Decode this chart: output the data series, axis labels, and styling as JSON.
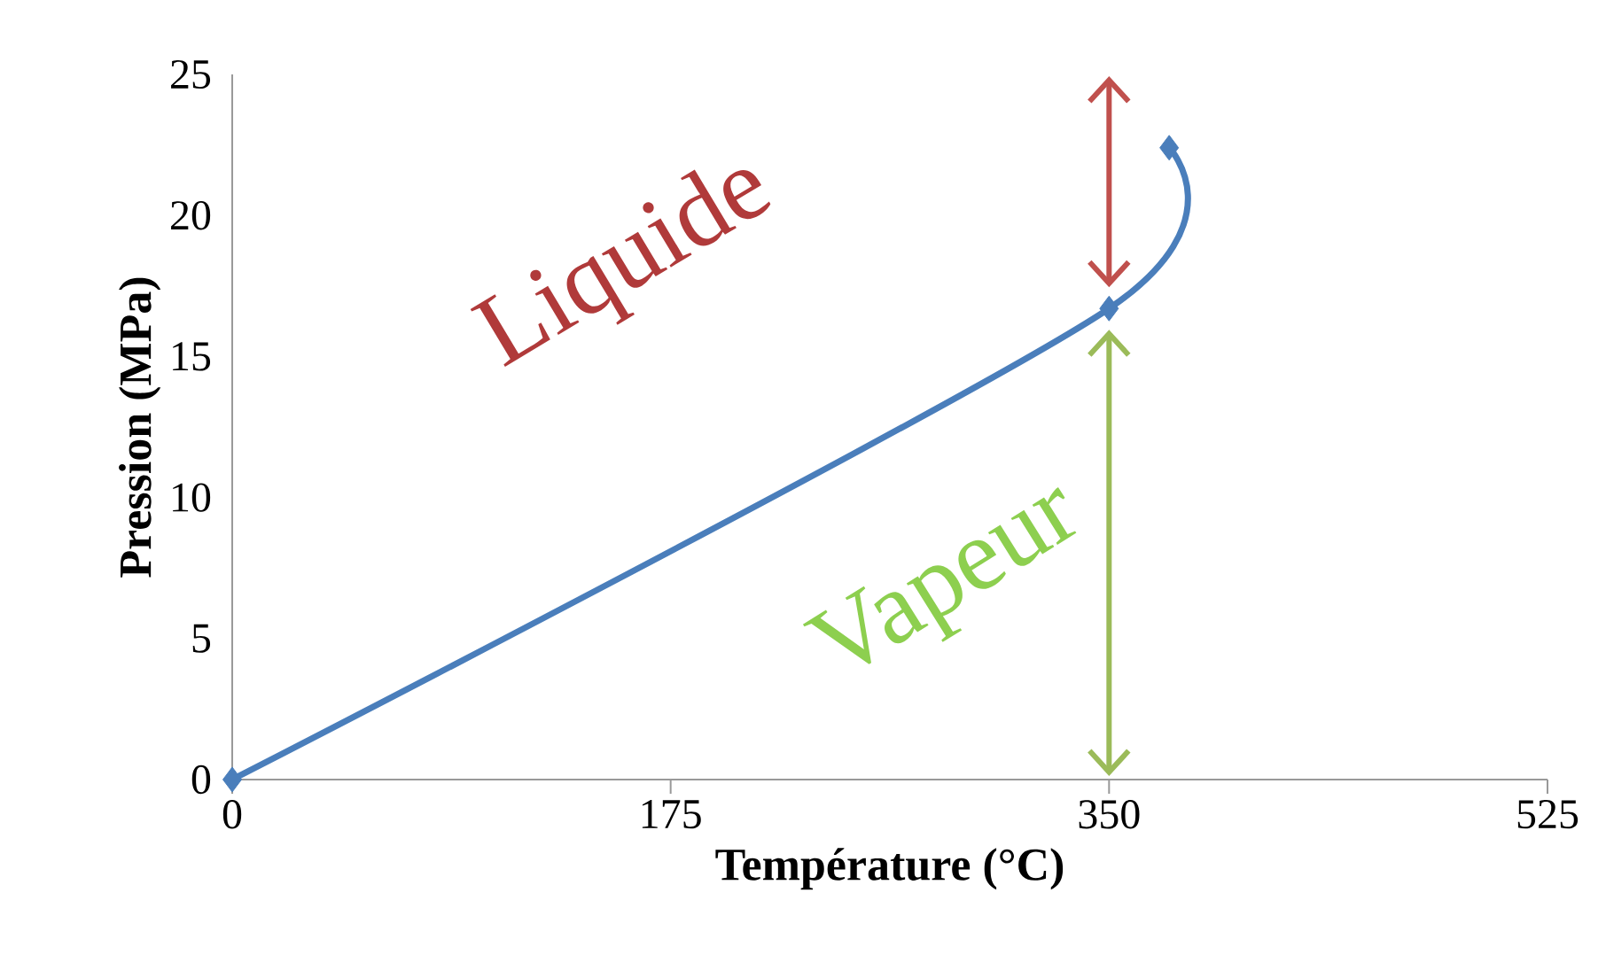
{
  "chart_data": {
    "type": "line",
    "xlabel": "Température (°C)",
    "ylabel": "Pression (MPa)",
    "x": [
      0,
      350,
      374
    ],
    "series": [
      {
        "color": "#4a7ebb",
        "values": [
          0,
          16.7,
          22.4
        ]
      }
    ],
    "xlim": [
      0,
      525
    ],
    "ylim": [
      0,
      25
    ],
    "xticks": [
      0,
      175,
      350,
      525
    ],
    "yticks": [
      0,
      5,
      10,
      15,
      20,
      25
    ],
    "marker": "diamond",
    "line_style": "solid",
    "annotations": [
      "Liquide",
      "Vapeur"
    ]
  }
}
